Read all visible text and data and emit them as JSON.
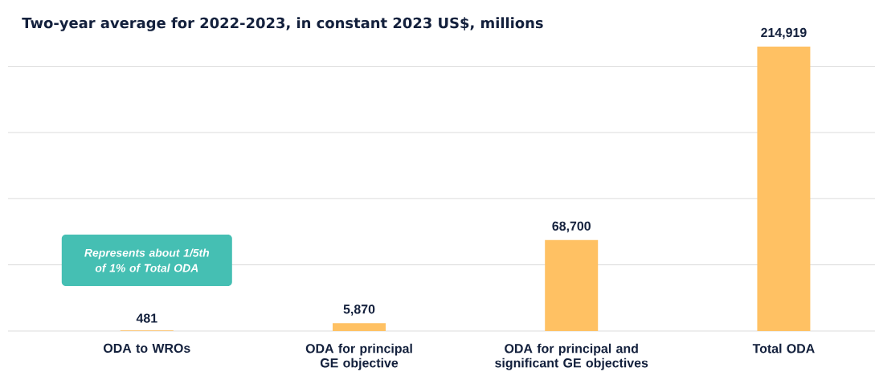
{
  "chart_data": {
    "type": "bar",
    "title": "Two-year average for 2022-2023, in constant 2023 US$, millions",
    "categories": [
      "ODA to WROs",
      "ODA for principal GE objective",
      "ODA for principal and significant GE objectives",
      "Total ODA"
    ],
    "values": [
      481,
      5870,
      68700,
      214919
    ],
    "color": "#ffc163",
    "yticks": [
      {
        "value": 0,
        "label": null
      },
      {
        "value": 50000,
        "label": null
      },
      {
        "value": 100000,
        "label": null
      },
      {
        "value": 150000,
        "label": null
      },
      {
        "value": 200000,
        "label": null
      }
    ],
    "value_labels": [
      "481",
      "5,870",
      "68,700",
      "214,919"
    ],
    "tick_labels": "x",
    "grid": "y",
    "annotations": [
      "Represents about 1/5th of 1% of Total ODA"
    ]
  }
}
